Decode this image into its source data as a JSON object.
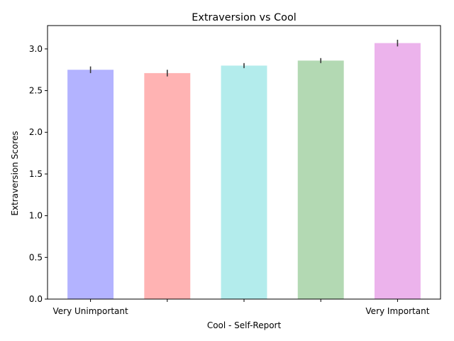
{
  "chart_data": {
    "type": "bar",
    "title": "Extraversion vs Cool",
    "xlabel": "Cool - Self-Report",
    "ylabel": "Extraversion Scores",
    "categories": [
      "Very Unimportant",
      "",
      "",
      "",
      "Very Important"
    ],
    "values": [
      2.75,
      2.71,
      2.8,
      2.86,
      3.07
    ],
    "errors": [
      0.04,
      0.04,
      0.03,
      0.03,
      0.04
    ],
    "colors": [
      "#b3b3ff",
      "#ffb3b3",
      "#b3ecec",
      "#b3d9b3",
      "#ecb3ec"
    ],
    "ylim": [
      0,
      3.28
    ],
    "yticks": [
      0.0,
      0.5,
      1.0,
      1.5,
      2.0,
      2.5,
      3.0
    ],
    "ytick_labels": [
      "0.0",
      "0.5",
      "1.0",
      "1.5",
      "2.0",
      "2.5",
      "3.0"
    ],
    "grid": false,
    "legend": false
  }
}
